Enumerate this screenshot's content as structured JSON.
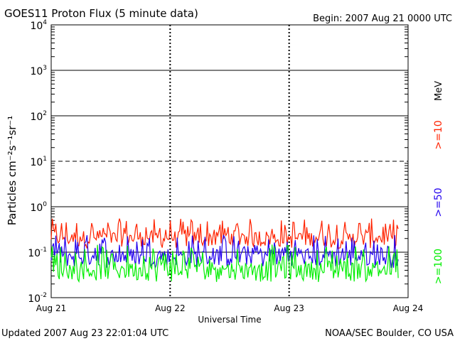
{
  "header": {
    "title": "GOES11 Proton Flux (5 minute data)",
    "begin": "Begin: 2007 Aug 21 0000 UTC"
  },
  "footer": {
    "updated": "Updated 2007 Aug 23 22:01:04 UTC",
    "credit": "NOAA/SEC Boulder, CO USA"
  },
  "legend": {
    "unit": "MeV",
    "items": [
      {
        "label": ">=10",
        "color": "#ff2200"
      },
      {
        "label": ">=50",
        "color": "#2200ee"
      },
      {
        "label": ">=100",
        "color": "#00ee00"
      }
    ]
  },
  "chart_data": {
    "type": "line",
    "yscale": "log",
    "ylim": [
      0.01,
      10000
    ],
    "ylabel": "Particles cm⁻²s⁻¹sr⁻¹",
    "xlabel": "Universal Time",
    "x_ticks": [
      "Aug 21",
      "Aug 22",
      "Aug 23",
      "Aug 24"
    ],
    "y_ticks": [
      {
        "value": 10000,
        "base": "10",
        "exp": "4"
      },
      {
        "value": 1000,
        "base": "10",
        "exp": "3"
      },
      {
        "value": 100,
        "base": "10",
        "exp": "2"
      },
      {
        "value": 10,
        "base": "10",
        "exp": "1"
      },
      {
        "value": 1,
        "base": "10",
        "exp": "0"
      },
      {
        "value": 0.1,
        "base": "10",
        "exp": "-1"
      },
      {
        "value": 0.01,
        "base": "10",
        "exp": "-2"
      }
    ],
    "threshold_lines": [
      {
        "value": 10,
        "style": "dashed"
      }
    ],
    "series": [
      {
        "name": ">=10 MeV",
        "color": "#ff2200",
        "typical": 0.2,
        "min": 0.12,
        "max": 0.55
      },
      {
        "name": ">=50 MeV",
        "color": "#2200ee",
        "typical": 0.08,
        "min": 0.045,
        "max": 0.25
      },
      {
        "name": ">=100 MeV",
        "color": "#00ee00",
        "typical": 0.04,
        "min": 0.022,
        "max": 0.15
      }
    ]
  }
}
